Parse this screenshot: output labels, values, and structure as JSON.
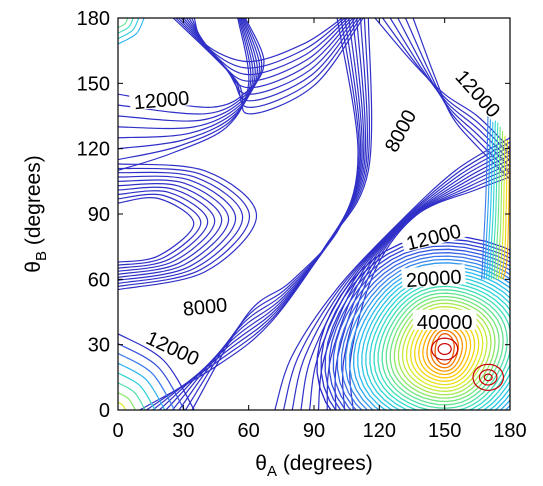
{
  "chart_data": {
    "type": "contour",
    "xlabel": "θA (degrees)",
    "ylabel": "θB (degrees)",
    "xlabel_parts": {
      "symbol": "θ",
      "subscript": "A",
      "rest": " (degrees)"
    },
    "ylabel_parts": {
      "symbol": "θ",
      "subscript": "B",
      "rest": " (degrees)"
    },
    "xlim": [
      0,
      180
    ],
    "ylim": [
      0,
      180
    ],
    "xticks": [
      0,
      30,
      60,
      90,
      120,
      150,
      180
    ],
    "yticks": [
      0,
      30,
      60,
      90,
      120,
      150,
      180
    ],
    "xtick_labels": [
      "0",
      "30",
      "60",
      "90",
      "120",
      "150",
      "180"
    ],
    "ytick_labels": [
      "0",
      "30",
      "60",
      "90",
      "120",
      "150",
      "180"
    ],
    "colormap": "jet",
    "low_color": "#3030c8",
    "high_color": "#c80000",
    "contour_levels_labeled": [
      {
        "text": "12000",
        "x": 20,
        "y": 142,
        "angle": -5
      },
      {
        "text": "8000",
        "x": 130,
        "y": 128,
        "angle": -62
      },
      {
        "text": "12000",
        "x": 165,
        "y": 145,
        "angle": 48
      },
      {
        "text": "12000",
        "x": 145,
        "y": 79,
        "angle": -14
      },
      {
        "text": "20000",
        "x": 145,
        "y": 60,
        "angle": -4
      },
      {
        "text": "40000",
        "x": 150,
        "y": 40,
        "angle": 0
      },
      {
        "text": "8000",
        "x": 40,
        "y": 47,
        "angle": -6
      },
      {
        "text": "12000",
        "x": 25,
        "y": 28,
        "angle": 25
      }
    ],
    "grid": false,
    "legend": "none"
  }
}
